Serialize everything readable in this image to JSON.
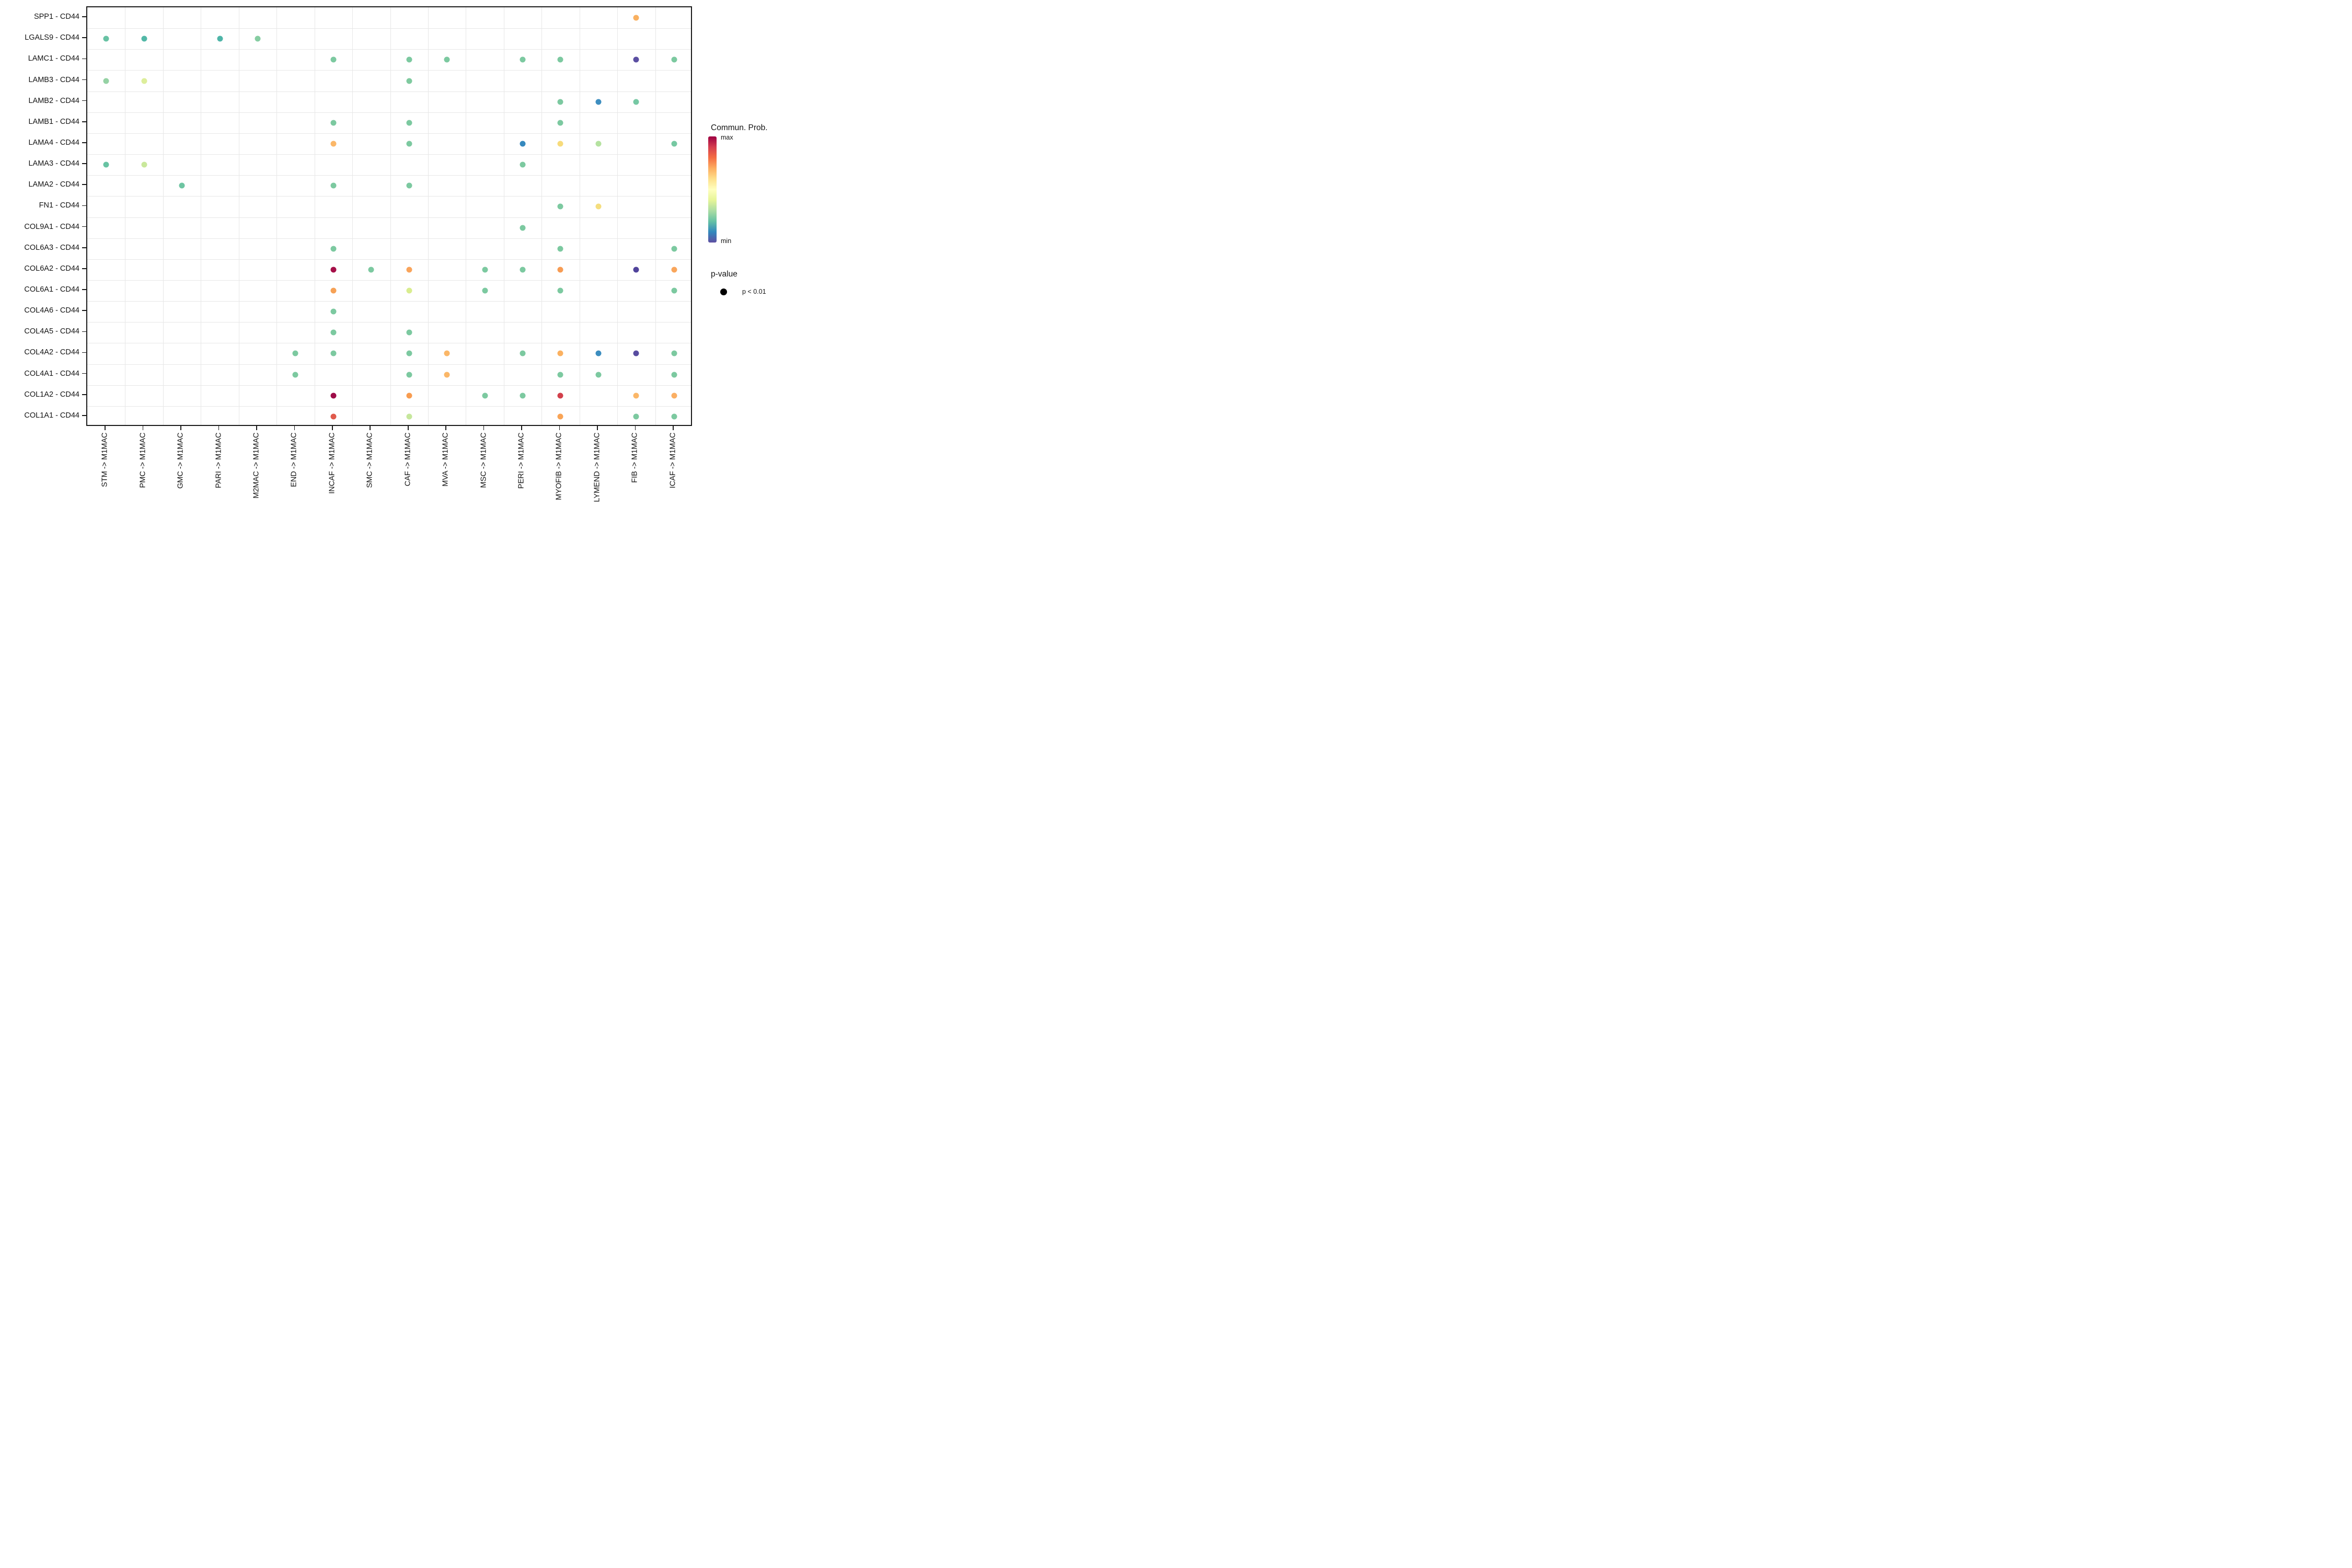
{
  "chart_data": {
    "type": "scatter",
    "title": "",
    "xlabel": "",
    "ylabel": "",
    "grid": "on",
    "legend_position": "right",
    "rows": [
      "SPP1 - CD44",
      "LGALS9 - CD44",
      "LAMC1 - CD44",
      "LAMB3 - CD44",
      "LAMB2 - CD44",
      "LAMB1 - CD44",
      "LAMA4 - CD44",
      "LAMA3 - CD44",
      "LAMA2 - CD44",
      "FN1 - CD44",
      "COL9A1 - CD44",
      "COL6A3 - CD44",
      "COL6A2 - CD44",
      "COL6A1 - CD44",
      "COL4A6 - CD44",
      "COL4A5 - CD44",
      "COL4A2 - CD44",
      "COL4A1 - CD44",
      "COL1A2 - CD44",
      "COL1A1 - CD44"
    ],
    "columns": [
      "STM -> M1MAC",
      "PMC -> M1MAC",
      "GMC -> M1MAC",
      "PARI -> M1MAC",
      "M2MAC -> M1MAC",
      "END -> M1MAC",
      "INCAF -> M1MAC",
      "SMC -> M1MAC",
      "CAF -> M1MAC",
      "MVA -> M1MAC",
      "MSC -> M1MAC",
      "PERI -> M1MAC",
      "MYOFIB -> M1MAC",
      "LYMEND -> M1MAC",
      "FIB -> M1MAC",
      "ICAF -> M1MAC"
    ],
    "points": [
      {
        "row": "SPP1 - CD44",
        "col": "FIB -> M1MAC",
        "color": "#F9B060"
      },
      {
        "row": "LGALS9 - CD44",
        "col": "STM -> M1MAC",
        "color": "#68C2A4"
      },
      {
        "row": "LGALS9 - CD44",
        "col": "PMC -> M1MAC",
        "color": "#52B8A7"
      },
      {
        "row": "LGALS9 - CD44",
        "col": "PARI -> M1MAC",
        "color": "#4EB5A8"
      },
      {
        "row": "LGALS9 - CD44",
        "col": "M2MAC -> M1MAC",
        "color": "#86CDA2"
      },
      {
        "row": "LAMC1 - CD44",
        "col": "INCAF -> M1MAC",
        "color": "#7CC9A0"
      },
      {
        "row": "LAMC1 - CD44",
        "col": "CAF -> M1MAC",
        "color": "#7CC9A0"
      },
      {
        "row": "LAMC1 - CD44",
        "col": "MVA -> M1MAC",
        "color": "#7CC9A0"
      },
      {
        "row": "LAMC1 - CD44",
        "col": "PERI -> M1MAC",
        "color": "#7CC9A0"
      },
      {
        "row": "LAMC1 - CD44",
        "col": "MYOFIB -> M1MAC",
        "color": "#7CC9A0"
      },
      {
        "row": "LAMC1 - CD44",
        "col": "FIB -> M1MAC",
        "color": "#5B4FA2"
      },
      {
        "row": "LAMC1 - CD44",
        "col": "ICAF -> M1MAC",
        "color": "#7CC9A0"
      },
      {
        "row": "LAMB3 - CD44",
        "col": "STM -> M1MAC",
        "color": "#95D2A4"
      },
      {
        "row": "LAMB3 - CD44",
        "col": "PMC -> M1MAC",
        "color": "#DDEE9B"
      },
      {
        "row": "LAMB3 - CD44",
        "col": "CAF -> M1MAC",
        "color": "#7FCA9F"
      },
      {
        "row": "LAMB2 - CD44",
        "col": "MYOFIB -> M1MAC",
        "color": "#7CC9A0"
      },
      {
        "row": "LAMB2 - CD44",
        "col": "LYMEND -> M1MAC",
        "color": "#3E8EC0"
      },
      {
        "row": "LAMB2 - CD44",
        "col": "FIB -> M1MAC",
        "color": "#76C8A4"
      },
      {
        "row": "LAMB1 - CD44",
        "col": "INCAF -> M1MAC",
        "color": "#7CC9A0"
      },
      {
        "row": "LAMB1 - CD44",
        "col": "CAF -> M1MAC",
        "color": "#7CC9A0"
      },
      {
        "row": "LAMB1 - CD44",
        "col": "MYOFIB -> M1MAC",
        "color": "#7CC9A0"
      },
      {
        "row": "LAMA4 - CD44",
        "col": "INCAF -> M1MAC",
        "color": "#FBB768"
      },
      {
        "row": "LAMA4 - CD44",
        "col": "CAF -> M1MAC",
        "color": "#7CC9A0"
      },
      {
        "row": "LAMA4 - CD44",
        "col": "PERI -> M1MAC",
        "color": "#3689BE"
      },
      {
        "row": "LAMA4 - CD44",
        "col": "MYOFIB -> M1MAC",
        "color": "#F7DB7B"
      },
      {
        "row": "LAMA4 - CD44",
        "col": "LYMEND -> M1MAC",
        "color": "#B5E2A0"
      },
      {
        "row": "LAMA4 - CD44",
        "col": "ICAF -> M1MAC",
        "color": "#76C8A2"
      },
      {
        "row": "LAMA3 - CD44",
        "col": "STM -> M1MAC",
        "color": "#68C3A3"
      },
      {
        "row": "LAMA3 - CD44",
        "col": "PMC -> M1MAC",
        "color": "#C9E89B"
      },
      {
        "row": "LAMA3 - CD44",
        "col": "PERI -> M1MAC",
        "color": "#7CC9A0"
      },
      {
        "row": "LAMA2 - CD44",
        "col": "GMC -> M1MAC",
        "color": "#6EC5A2"
      },
      {
        "row": "LAMA2 - CD44",
        "col": "INCAF -> M1MAC",
        "color": "#7CC9A0"
      },
      {
        "row": "LAMA2 - CD44",
        "col": "CAF -> M1MAC",
        "color": "#7CC9A0"
      },
      {
        "row": "FN1 - CD44",
        "col": "MYOFIB -> M1MAC",
        "color": "#7CC9A0"
      },
      {
        "row": "FN1 - CD44",
        "col": "LYMEND -> M1MAC",
        "color": "#F5DE7E"
      },
      {
        "row": "COL9A1 - CD44",
        "col": "PERI -> M1MAC",
        "color": "#7CC9A0"
      },
      {
        "row": "COL6A3 - CD44",
        "col": "INCAF -> M1MAC",
        "color": "#7CC9A0"
      },
      {
        "row": "COL6A3 - CD44",
        "col": "MYOFIB -> M1MAC",
        "color": "#7CC9A0"
      },
      {
        "row": "COL6A3 - CD44",
        "col": "ICAF -> M1MAC",
        "color": "#7CC9A0"
      },
      {
        "row": "COL6A2 - CD44",
        "col": "INCAF -> M1MAC",
        "color": "#A50F48"
      },
      {
        "row": "COL6A2 - CD44",
        "col": "SMC -> M1MAC",
        "color": "#7CC9A0"
      },
      {
        "row": "COL6A2 - CD44",
        "col": "CAF -> M1MAC",
        "color": "#F9A45B"
      },
      {
        "row": "COL6A2 - CD44",
        "col": "MSC -> M1MAC",
        "color": "#7CC9A0"
      },
      {
        "row": "COL6A2 - CD44",
        "col": "PERI -> M1MAC",
        "color": "#7CC9A0"
      },
      {
        "row": "COL6A2 - CD44",
        "col": "MYOFIB -> M1MAC",
        "color": "#F79C54"
      },
      {
        "row": "COL6A2 - CD44",
        "col": "FIB -> M1MAC",
        "color": "#50439B"
      },
      {
        "row": "COL6A2 - CD44",
        "col": "ICAF -> M1MAC",
        "color": "#F9A65C"
      },
      {
        "row": "COL6A1 - CD44",
        "col": "INCAF -> M1MAC",
        "color": "#F6A155"
      },
      {
        "row": "COL6A1 - CD44",
        "col": "CAF -> M1MAC",
        "color": "#D9ED8F"
      },
      {
        "row": "COL6A1 - CD44",
        "col": "MSC -> M1MAC",
        "color": "#7CC9A0"
      },
      {
        "row": "COL6A1 - CD44",
        "col": "MYOFIB -> M1MAC",
        "color": "#7CC9A0"
      },
      {
        "row": "COL6A1 - CD44",
        "col": "ICAF -> M1MAC",
        "color": "#7CC9A0"
      },
      {
        "row": "COL4A6 - CD44",
        "col": "INCAF -> M1MAC",
        "color": "#7CC9A0"
      },
      {
        "row": "COL4A5 - CD44",
        "col": "INCAF -> M1MAC",
        "color": "#7CC9A0"
      },
      {
        "row": "COL4A5 - CD44",
        "col": "CAF -> M1MAC",
        "color": "#7CC9A0"
      },
      {
        "row": "COL4A2 - CD44",
        "col": "END -> M1MAC",
        "color": "#7CC9A0"
      },
      {
        "row": "COL4A2 - CD44",
        "col": "INCAF -> M1MAC",
        "color": "#7CC9A0"
      },
      {
        "row": "COL4A2 - CD44",
        "col": "CAF -> M1MAC",
        "color": "#7CC9A0"
      },
      {
        "row": "COL4A2 - CD44",
        "col": "MVA -> M1MAC",
        "color": "#FBB768"
      },
      {
        "row": "COL4A2 - CD44",
        "col": "PERI -> M1MAC",
        "color": "#7CC9A0"
      },
      {
        "row": "COL4A2 - CD44",
        "col": "MYOFIB -> M1MAC",
        "color": "#FBB160"
      },
      {
        "row": "COL4A2 - CD44",
        "col": "LYMEND -> M1MAC",
        "color": "#3C8DBF"
      },
      {
        "row": "COL4A2 - CD44",
        "col": "FIB -> M1MAC",
        "color": "#584CA0"
      },
      {
        "row": "COL4A2 - CD44",
        "col": "ICAF -> M1MAC",
        "color": "#7CC9A0"
      },
      {
        "row": "COL4A1 - CD44",
        "col": "END -> M1MAC",
        "color": "#7CC9A0"
      },
      {
        "row": "COL4A1 - CD44",
        "col": "CAF -> M1MAC",
        "color": "#7CC9A0"
      },
      {
        "row": "COL4A1 - CD44",
        "col": "MVA -> M1MAC",
        "color": "#FBB768"
      },
      {
        "row": "COL4A1 - CD44",
        "col": "MYOFIB -> M1MAC",
        "color": "#7CC9A0"
      },
      {
        "row": "COL4A1 - CD44",
        "col": "LYMEND -> M1MAC",
        "color": "#7CC9A0"
      },
      {
        "row": "COL4A1 - CD44",
        "col": "ICAF -> M1MAC",
        "color": "#7CC9A0"
      },
      {
        "row": "COL1A2 - CD44",
        "col": "INCAF -> M1MAC",
        "color": "#9E0C48"
      },
      {
        "row": "COL1A2 - CD44",
        "col": "CAF -> M1MAC",
        "color": "#F89C50"
      },
      {
        "row": "COL1A2 - CD44",
        "col": "MSC -> M1MAC",
        "color": "#7CC9A0"
      },
      {
        "row": "COL1A2 - CD44",
        "col": "PERI -> M1MAC",
        "color": "#7CC9A0"
      },
      {
        "row": "COL1A2 - CD44",
        "col": "MYOFIB -> M1MAC",
        "color": "#D2404B"
      },
      {
        "row": "COL1A2 - CD44",
        "col": "FIB -> M1MAC",
        "color": "#FBB768"
      },
      {
        "row": "COL1A2 - CD44",
        "col": "ICAF -> M1MAC",
        "color": "#FBAF63"
      },
      {
        "row": "COL1A1 - CD44",
        "col": "INCAF -> M1MAC",
        "color": "#E05A4C"
      },
      {
        "row": "COL1A1 - CD44",
        "col": "CAF -> M1MAC",
        "color": "#C6E79C"
      },
      {
        "row": "COL1A1 - CD44",
        "col": "MYOFIB -> M1MAC",
        "color": "#F9A456"
      },
      {
        "row": "COL1A1 - CD44",
        "col": "FIB -> M1MAC",
        "color": "#7CC9A0"
      },
      {
        "row": "COL1A1 - CD44",
        "col": "ICAF -> M1MAC",
        "color": "#7CC9A0"
      }
    ],
    "legend": {
      "title": "Commun. Prob.",
      "max_label": "max",
      "min_label": "min",
      "gradient_stops": [
        "#9E0142",
        "#D53E4F",
        "#F46D43",
        "#FDAE61",
        "#FEE08B",
        "#FFFFBF",
        "#E6F598",
        "#ABDDA4",
        "#66C2A5",
        "#3288BD",
        "#5E4FA2"
      ],
      "pvalue_title": "p-value",
      "pvalue_items": [
        {
          "label": "p < 0.01"
        }
      ]
    }
  }
}
